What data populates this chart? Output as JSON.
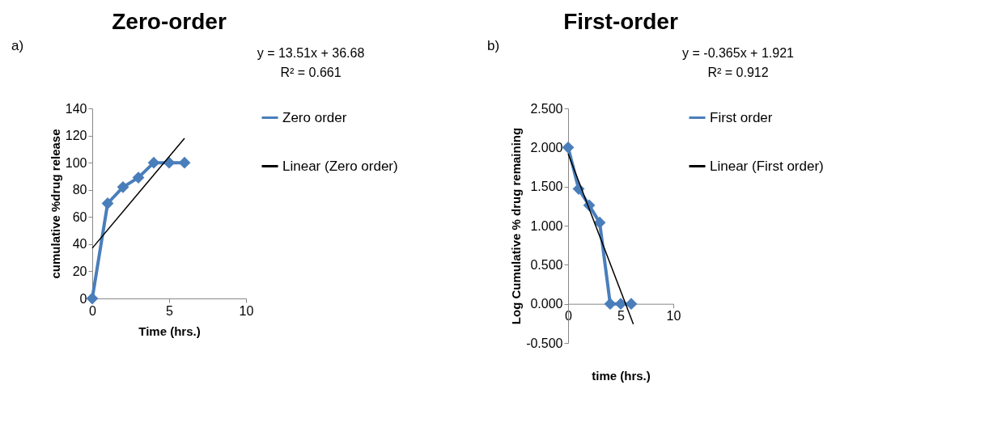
{
  "chart_data": [
    {
      "type": "line",
      "title": "Zero-order",
      "xlabel": "Time (hrs.)",
      "ylabel": "cumulative %drug release",
      "annotations": [
        "a)",
        "y = 13.51x + 36.68",
        "R² = 0.661"
      ],
      "legend": "right",
      "grid": false,
      "xlim": [
        0,
        10
      ],
      "xticks": [
        0,
        5,
        10
      ],
      "ylim": [
        0,
        140
      ],
      "yticks": [
        0,
        20,
        40,
        60,
        80,
        100,
        120,
        140
      ],
      "series": [
        {
          "name": "Zero order",
          "color": "#4a7ebb",
          "marker": "diamond",
          "x": [
            0,
            1,
            2,
            3,
            4,
            5,
            6
          ],
          "values": [
            0,
            70,
            82,
            89,
            100,
            100,
            100
          ]
        },
        {
          "name": "Linear (Zero order)",
          "color": "#000000",
          "marker": "none",
          "x": [
            0,
            6
          ],
          "values": [
            37,
            118
          ]
        }
      ]
    },
    {
      "type": "line",
      "title": "First-order",
      "xlabel": "time (hrs.)",
      "ylabel": "Log Cumulative % drug remaining",
      "annotations": [
        "b)",
        "y = -0.365x + 1.921",
        "R² = 0.912"
      ],
      "legend": "right",
      "grid": false,
      "xlim": [
        0,
        10
      ],
      "xticks": [
        0,
        5,
        10
      ],
      "ylim": [
        -0.5,
        2.5
      ],
      "yticks": [
        {
          "value": -0.5,
          "label": "-0.500"
        },
        {
          "value": 0,
          "label": "0.000"
        },
        {
          "value": 0.5,
          "label": "0.500"
        },
        {
          "value": 1,
          "label": "1.000"
        },
        {
          "value": 1.5,
          "label": "1.500"
        },
        {
          "value": 2,
          "label": "2.000"
        },
        {
          "value": 2.5,
          "label": "2.500"
        }
      ],
      "series": [
        {
          "name": "First order",
          "color": "#4a7ebb",
          "marker": "diamond",
          "x": [
            0,
            1,
            2,
            3,
            4,
            5,
            6
          ],
          "values": [
            2.0,
            1.47,
            1.26,
            1.04,
            0,
            0,
            0
          ]
        },
        {
          "name": "Linear (First order)",
          "color": "#000000",
          "marker": "none",
          "x": [
            0,
            6.2
          ],
          "values": [
            1.92,
            -0.26
          ]
        }
      ]
    }
  ]
}
